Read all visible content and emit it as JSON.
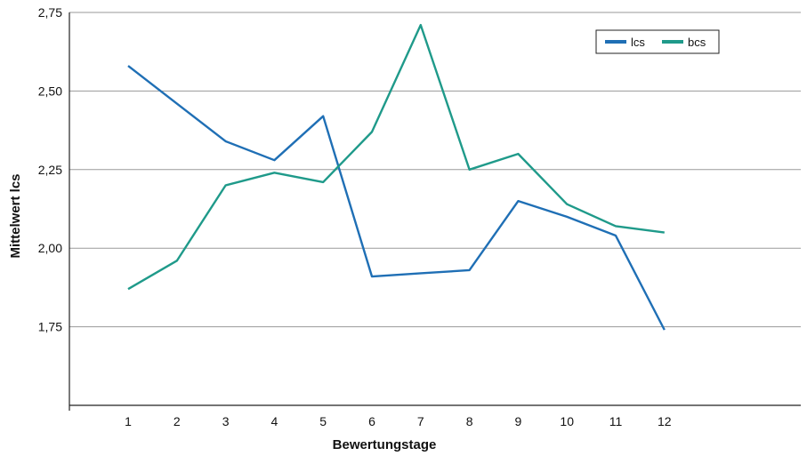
{
  "chart_data": {
    "type": "line",
    "xlabel": "Bewertungstage",
    "ylabel": "Mittelwert lcs",
    "categories": [
      "1",
      "2",
      "3",
      "4",
      "5",
      "6",
      "7",
      "8",
      "9",
      "10",
      "11",
      "12"
    ],
    "ylim": [
      1.5,
      2.75
    ],
    "yticks": [
      "1,75",
      "2,00",
      "2,25",
      "2,50",
      "2,75"
    ],
    "ytick_values": [
      1.75,
      2.0,
      2.25,
      2.5,
      2.75
    ],
    "grid": true,
    "legend_position": "top-right",
    "series": [
      {
        "name": "lcs",
        "color": "#1f6fb5",
        "values": [
          2.58,
          2.46,
          2.34,
          2.28,
          2.42,
          1.91,
          1.92,
          1.93,
          2.15,
          2.1,
          2.04,
          1.74
        ]
      },
      {
        "name": "bcs",
        "color": "#1f9a8a",
        "values": [
          1.87,
          1.96,
          2.2,
          2.24,
          2.21,
          2.37,
          2.71,
          2.25,
          2.3,
          2.14,
          2.07,
          2.05
        ]
      }
    ]
  }
}
